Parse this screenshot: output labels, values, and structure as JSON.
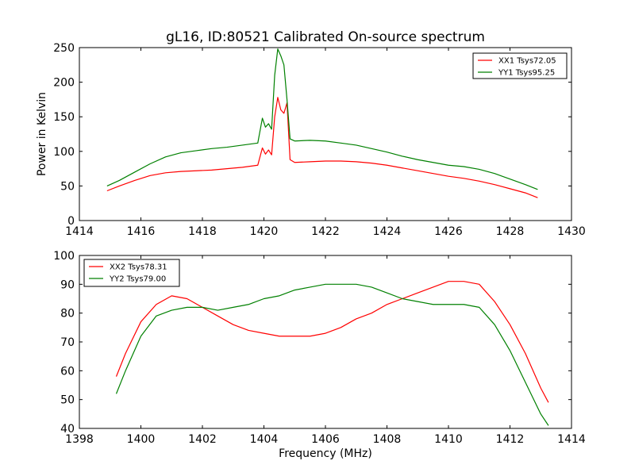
{
  "chart_data": [
    {
      "type": "line",
      "title": "gL16, ID:80521 Calibrated On-source spectrum",
      "ylabel": "Power in Kelvin",
      "xlabel": "",
      "xlim": [
        1414,
        1430
      ],
      "ylim": [
        0,
        250
      ],
      "xticks": [
        1414,
        1416,
        1418,
        1420,
        1422,
        1424,
        1426,
        1428,
        1430
      ],
      "yticks": [
        0,
        50,
        100,
        150,
        200,
        250
      ],
      "legend_position": "top-right",
      "grid": false,
      "series": [
        {
          "name": "XX1 Tsys72.05",
          "color": "#ff0000",
          "x": [
            1414.9,
            1415.3,
            1415.8,
            1416.3,
            1416.8,
            1417.3,
            1417.8,
            1418.3,
            1418.8,
            1419.3,
            1419.8,
            1419.95,
            1420.05,
            1420.15,
            1420.25,
            1420.35,
            1420.45,
            1420.55,
            1420.65,
            1420.75,
            1420.85,
            1421.0,
            1421.5,
            1422.0,
            1422.5,
            1423.0,
            1423.5,
            1424.0,
            1424.5,
            1425.0,
            1425.5,
            1426.0,
            1426.5,
            1427.0,
            1427.5,
            1428.0,
            1428.5,
            1428.9
          ],
          "y": [
            43,
            50,
            58,
            65,
            69,
            71,
            72,
            73,
            75,
            77,
            80,
            105,
            96,
            102,
            95,
            150,
            178,
            160,
            155,
            170,
            88,
            84,
            85,
            86,
            86,
            85,
            83,
            80,
            76,
            72,
            68,
            64,
            61,
            57,
            52,
            46,
            40,
            33
          ]
        },
        {
          "name": "YY1 Tsys95.25",
          "color": "#008000",
          "x": [
            1414.9,
            1415.3,
            1415.8,
            1416.3,
            1416.8,
            1417.3,
            1417.8,
            1418.3,
            1418.8,
            1419.3,
            1419.8,
            1419.95,
            1420.05,
            1420.15,
            1420.25,
            1420.35,
            1420.45,
            1420.55,
            1420.65,
            1420.75,
            1420.85,
            1421.0,
            1421.5,
            1422.0,
            1422.5,
            1423.0,
            1423.5,
            1424.0,
            1424.5,
            1425.0,
            1425.5,
            1426.0,
            1426.5,
            1427.0,
            1427.5,
            1428.0,
            1428.5,
            1428.9
          ],
          "y": [
            50,
            58,
            70,
            82,
            92,
            98,
            101,
            104,
            106,
            109,
            112,
            148,
            135,
            140,
            132,
            210,
            248,
            238,
            225,
            175,
            118,
            115,
            116,
            115,
            112,
            109,
            104,
            99,
            93,
            88,
            84,
            80,
            78,
            74,
            68,
            60,
            52,
            45
          ]
        }
      ]
    },
    {
      "type": "line",
      "title": "",
      "xlabel": "Frequency (MHz)",
      "ylabel": "",
      "xlim": [
        1398,
        1414
      ],
      "ylim": [
        40,
        100
      ],
      "xticks": [
        1398,
        1400,
        1402,
        1404,
        1406,
        1408,
        1410,
        1412,
        1414
      ],
      "yticks": [
        40,
        50,
        60,
        70,
        80,
        90,
        100
      ],
      "legend_position": "top-left",
      "grid": false,
      "series": [
        {
          "name": "XX2 Tsys78.31",
          "color": "#ff0000",
          "x": [
            1399.2,
            1399.5,
            1400.0,
            1400.5,
            1401.0,
            1401.5,
            1402.0,
            1402.5,
            1403.0,
            1403.5,
            1404.0,
            1404.5,
            1405.0,
            1405.5,
            1406.0,
            1406.5,
            1407.0,
            1407.5,
            1408.0,
            1408.5,
            1409.0,
            1409.5,
            1410.0,
            1410.5,
            1411.0,
            1411.5,
            1412.0,
            1412.5,
            1413.0,
            1413.25
          ],
          "y": [
            58,
            66,
            77,
            83,
            86,
            85,
            82,
            79,
            76,
            74,
            73,
            72,
            72,
            72,
            73,
            75,
            78,
            80,
            83,
            85,
            87,
            89,
            91,
            91,
            90,
            84,
            76,
            66,
            54,
            49
          ]
        },
        {
          "name": "YY2 Tsys79.00",
          "color": "#008000",
          "x": [
            1399.2,
            1399.5,
            1400.0,
            1400.5,
            1401.0,
            1401.5,
            1402.0,
            1402.5,
            1403.0,
            1403.5,
            1404.0,
            1404.5,
            1405.0,
            1405.5,
            1406.0,
            1406.5,
            1407.0,
            1407.5,
            1408.0,
            1408.5,
            1409.0,
            1409.5,
            1410.0,
            1410.5,
            1411.0,
            1411.5,
            1412.0,
            1412.5,
            1413.0,
            1413.25
          ],
          "y": [
            52,
            60,
            72,
            79,
            81,
            82,
            82,
            81,
            82,
            83,
            85,
            86,
            88,
            89,
            90,
            90,
            90,
            89,
            87,
            85,
            84,
            83,
            83,
            83,
            82,
            76,
            67,
            56,
            45,
            41
          ]
        }
      ]
    }
  ]
}
